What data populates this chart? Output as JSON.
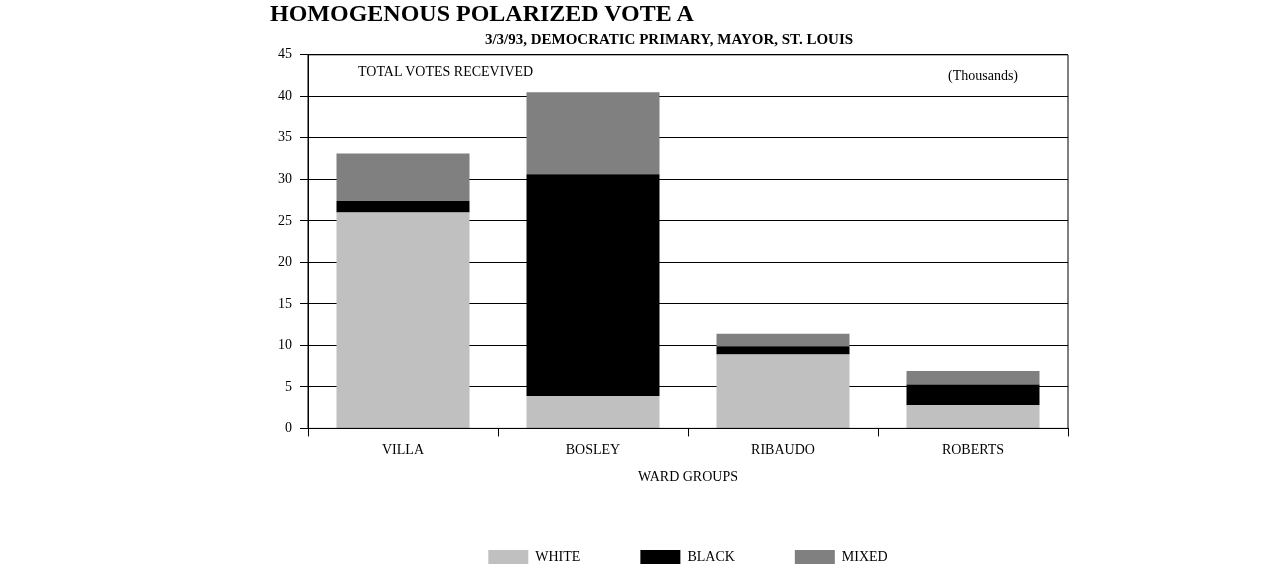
{
  "chart_data": {
    "type": "bar",
    "title": "HOMOGENOUS POLARIZED VOTE A",
    "subtitle": "3/3/93, DEMOCRATIC PRIMARY, MAYOR, ST. LOUIS",
    "xlabel": "WARD GROUPS",
    "annotations": [
      "TOTAL VOTES RECEVIVED",
      "(Thousands)"
    ],
    "categories": [
      "VILLA",
      "BOSLEY",
      "RIBAUDO",
      "ROBERTS"
    ],
    "series": [
      {
        "name": "WHITE",
        "color": "#c0c0c0",
        "values": [
          26.0,
          3.9,
          8.9,
          2.8
        ]
      },
      {
        "name": "BLACK",
        "color": "#000000",
        "values": [
          1.4,
          26.7,
          1.0,
          2.5
        ]
      },
      {
        "name": "MIXED",
        "color": "#808080",
        "values": [
          5.7,
          9.9,
          1.5,
          1.6
        ]
      }
    ],
    "stacked": true,
    "ylim": [
      0,
      45
    ],
    "yticks": [
      0,
      5,
      10,
      15,
      20,
      25,
      30,
      35,
      40,
      45
    ],
    "grid": "y",
    "legend": "bottom"
  }
}
